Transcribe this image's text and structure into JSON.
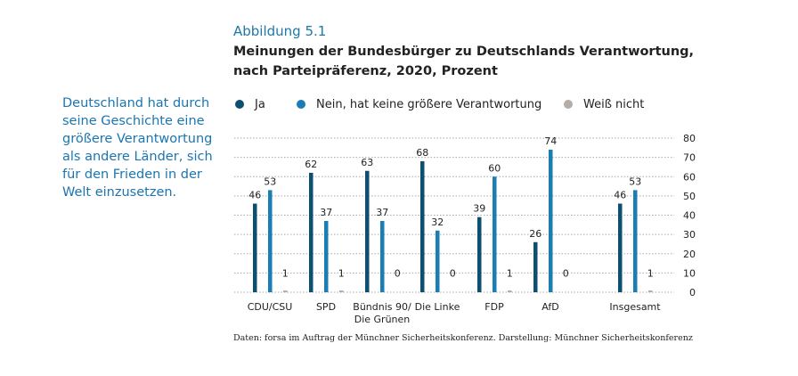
{
  "figure_label": "Abbildung 5.1",
  "title_line1": "Meinungen der Bundesbürger zu Deutschlands Verantwortung,",
  "title_line2": "nach Parteipräferenz, 2020, Prozent",
  "side_text": "Deutschland hat durch seine Geschichte eine größere Verantwortung als andere Länder, sich für den Frieden in der Welt einzusetzen.",
  "source": "Daten: forsa im Auftrag der Münchner Sicherheitskonferenz. Darstellung: Münchner Sicherheitskonferenz",
  "colors": {
    "ja": "#0d4f70",
    "nein": "#1a7db3",
    "weiss_nicht": "#b3aca7",
    "accent": "#1f78a8"
  },
  "chart_data": {
    "type": "bar",
    "title": "Meinungen der Bundesbürger zu Deutschlands Verantwortung, nach Parteipräferenz, 2020, Prozent",
    "xlabel": "",
    "ylabel": "",
    "ylim": [
      0,
      80
    ],
    "yticks": [
      0,
      10,
      20,
      30,
      40,
      50,
      60,
      70,
      80
    ],
    "y_axis_position": "right",
    "grid": true,
    "legend_position": "top",
    "categories": [
      "CDU/CSU",
      "SPD",
      "Bündnis 90/\nDie Grünen",
      "Die Linke",
      "FDP",
      "AfD",
      "Insgesamt"
    ],
    "series": [
      {
        "name": "Ja",
        "color": "#0d4f70",
        "values": [
          46,
          62,
          63,
          68,
          39,
          26,
          46
        ]
      },
      {
        "name": "Nein, hat keine größere Verantwortung",
        "color": "#1a7db3",
        "values": [
          53,
          37,
          37,
          32,
          60,
          74,
          53
        ]
      },
      {
        "name": "Weiß nicht",
        "color": "#b3aca7",
        "values": [
          1,
          1,
          0,
          0,
          1,
          0,
          1
        ]
      }
    ]
  }
}
